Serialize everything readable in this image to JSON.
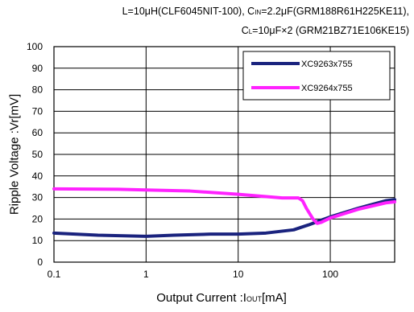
{
  "conditions": {
    "line1_main": "L=10",
    "line1_mu1": "μ",
    "line1_mid": "H(CLF6045NIT-100),  C",
    "line1_sub": "IN",
    "line1_mid2": "=2.2",
    "line1_mu2": "μ",
    "line1_end": "F(GRM188R61H225KE11),",
    "line2_main": "C",
    "line2_sub": "L",
    "line2_mid": "=10",
    "line2_mu": "μ",
    "line2_end": "F×2 (GRM21BZ71E106KE15)"
  },
  "chart_data": {
    "type": "line",
    "xlabel": "Output Current :I",
    "xlabel_sub": "OUT",
    "xlabel_unit": "[mA]",
    "ylabel": "Ripple Voltage :Vr[mV]",
    "xscale": "log",
    "xlim": [
      0.1,
      500
    ],
    "ylim": [
      0,
      100
    ],
    "xticks": [
      0.1,
      1,
      10,
      100
    ],
    "xtick_labels": [
      "0.1",
      "1",
      "10",
      "100"
    ],
    "yticks": [
      0,
      10,
      20,
      30,
      40,
      50,
      60,
      70,
      80,
      90,
      100
    ],
    "ytick_labels": [
      "0",
      "10",
      "20",
      "30",
      "40",
      "50",
      "60",
      "70",
      "80",
      "90",
      "100"
    ],
    "grid": true,
    "legend_position": "top-right",
    "series": [
      {
        "name": "XC9263x755",
        "color": "#1a237e",
        "x": [
          0.1,
          0.3,
          1,
          2,
          5,
          10,
          20,
          40,
          60,
          80,
          100,
          200,
          400,
          500
        ],
        "y": [
          13.5,
          12.5,
          12,
          12.5,
          13,
          13,
          13.5,
          15,
          17.5,
          19.5,
          21,
          25,
          28.5,
          29
        ]
      },
      {
        "name": "XC9264x755",
        "color": "#ff22ff",
        "x": [
          0.1,
          0.5,
          1,
          3,
          10,
          30,
          45,
          50,
          55,
          65,
          72,
          80,
          100,
          200,
          400,
          500
        ],
        "y": [
          34,
          33.8,
          33.5,
          33,
          31.5,
          29.8,
          29.8,
          28.5,
          25,
          20,
          18,
          18.5,
          20.5,
          24.5,
          27.5,
          28
        ]
      }
    ]
  }
}
